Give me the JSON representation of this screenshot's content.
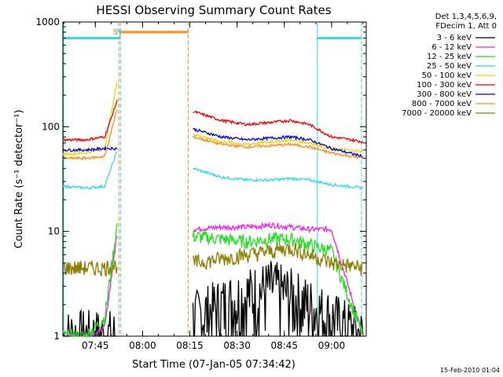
{
  "colors": {
    "background": "#ffffff",
    "axis": "#000000",
    "saa_marker": "#ff8c1a",
    "night_marker": "#33d8e8"
  },
  "chart_data": {
    "type": "line",
    "title": "HESSI Observing Summary Count Rates",
    "xlabel": "Start Time (07-Jan-05 07:34:42)",
    "ylabel": "Count Rate (s⁻¹ detector⁻¹)",
    "y_scale": "log",
    "ylim": [
      1,
      1000
    ],
    "xlim": [
      "07:34:42",
      "09:11:00"
    ],
    "x_ticks": [
      "07:45",
      "08:00",
      "08:15",
      "08:30",
      "08:45",
      "09:00"
    ],
    "y_ticks": [
      "1",
      "10",
      "100",
      "1000"
    ],
    "legend_position": "top-right, outside plot",
    "legend_header": [
      "Det 1,3,4,5,6,9,",
      "FDecim 1, Att 0"
    ],
    "timestamp": "15-Feb-2010 01:04",
    "annotations": [
      {
        "text": "S",
        "x": "07:52:00",
        "color": "#ff8c1a"
      },
      {
        "text": "N",
        "x": "07:53:00",
        "color": "#33d8e8"
      }
    ],
    "markers": {
      "saa_start": "07:52:30",
      "saa_end": "08:14:30",
      "saa_level": 800,
      "night_start_1": "07:34:42",
      "night_end_1": "07:53:00",
      "night_start_2": "08:55:30",
      "night_end_2": "09:09:30",
      "night_level": 700
    },
    "gap": {
      "start": "07:53:00",
      "end": "08:15:30"
    },
    "series": [
      {
        "name": "3 - 6 keV",
        "color": "#000000",
        "pre": [
          1.0,
          1.0,
          1.0,
          1.0
        ],
        "post": [
          1.5,
          2.0,
          2.5,
          3.0,
          2.5,
          2.0,
          1.5,
          1.0
        ]
      },
      {
        "name": "6 - 12 keV",
        "color": "#ee22ee",
        "pre": [
          1.0,
          1.0,
          1.2,
          10.0
        ],
        "post": [
          10.5,
          11.0,
          11.0,
          11.5,
          11.0,
          10.5,
          10.5,
          1.0
        ]
      },
      {
        "name": "12 - 25 keV",
        "color": "#22dd22",
        "pre": [
          1.0,
          1.0,
          1.5,
          12.0
        ],
        "post": [
          9.0,
          8.5,
          8.0,
          8.5,
          8.5,
          7.5,
          6.5,
          1.0
        ]
      },
      {
        "name": "25 - 50 keV",
        "color": "#33d8e8",
        "pre": [
          27,
          26,
          27,
          60
        ],
        "post": [
          40,
          33,
          31,
          31,
          32,
          31,
          28,
          26
        ]
      },
      {
        "name": "50 - 100 keV",
        "color": "#e8d800",
        "pre": [
          55,
          56,
          62,
          280
        ],
        "post": [
          85,
          72,
          68,
          72,
          75,
          70,
          62,
          58
        ]
      },
      {
        "name": "100 - 300 keV",
        "color": "#ee0000",
        "pre": [
          75,
          75,
          80,
          180
        ],
        "post": [
          140,
          115,
          105,
          110,
          115,
          105,
          80,
          72
        ]
      },
      {
        "name": "300 - 800 keV",
        "color": "#0000ee",
        "pre": [
          60,
          60,
          62,
          62
        ],
        "post": [
          95,
          80,
          75,
          78,
          80,
          75,
          62,
          52
        ]
      },
      {
        "name": "800 - 7000 keV",
        "color": "#ff8c1a",
        "pre": [
          50,
          50,
          52,
          150
        ],
        "post": [
          80,
          68,
          64,
          66,
          68,
          64,
          56,
          50
        ]
      },
      {
        "name": "7000 - 20000 keV",
        "color": "#8b7d00",
        "pre": [
          4.5,
          4.5,
          4.5,
          4.8
        ],
        "post": [
          5.0,
          5.5,
          6.0,
          6.5,
          7.0,
          6.0,
          5.0,
          4.5
        ]
      }
    ],
    "pre_times": [
      "07:34:42",
      "07:42:00",
      "07:48:00",
      "07:52:00"
    ],
    "post_times": [
      "08:16:00",
      "08:25:00",
      "08:33:00",
      "08:41:00",
      "08:47:00",
      "08:53:00",
      "09:00:00",
      "09:10:00"
    ]
  }
}
